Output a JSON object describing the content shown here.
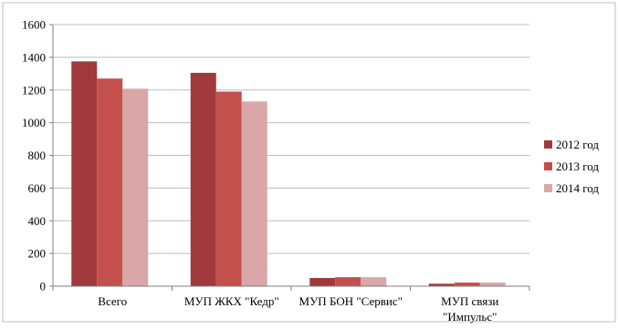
{
  "chart_data": {
    "type": "bar",
    "title": "",
    "xlabel": "",
    "ylabel": "",
    "ylim": [
      0,
      1600
    ],
    "yticks": [
      0,
      200,
      400,
      600,
      800,
      1000,
      1200,
      1400,
      1600
    ],
    "ytick_labels": [
      "0",
      "200",
      "400",
      "600",
      "800",
      "1000",
      "1200",
      "1400",
      "1600"
    ],
    "grid": true,
    "legend_position": "right",
    "categories": [
      {
        "lines": [
          "Всего"
        ]
      },
      {
        "lines": [
          "МУП ЖКХ \"Кедр\""
        ]
      },
      {
        "lines": [
          "МУП БОН \"Сервис\""
        ]
      },
      {
        "lines": [
          "МУП связи",
          "\"Импульс\""
        ]
      }
    ],
    "series": [
      {
        "name": "2012 год",
        "color": "#a0393b",
        "values": [
          1375,
          1305,
          50,
          15
        ]
      },
      {
        "name": "2013 год",
        "color": "#c4504e",
        "values": [
          1270,
          1190,
          55,
          22
        ]
      },
      {
        "name": "2014 год",
        "color": "#d9a7a8",
        "values": [
          1208,
          1130,
          55,
          22
        ]
      }
    ]
  }
}
